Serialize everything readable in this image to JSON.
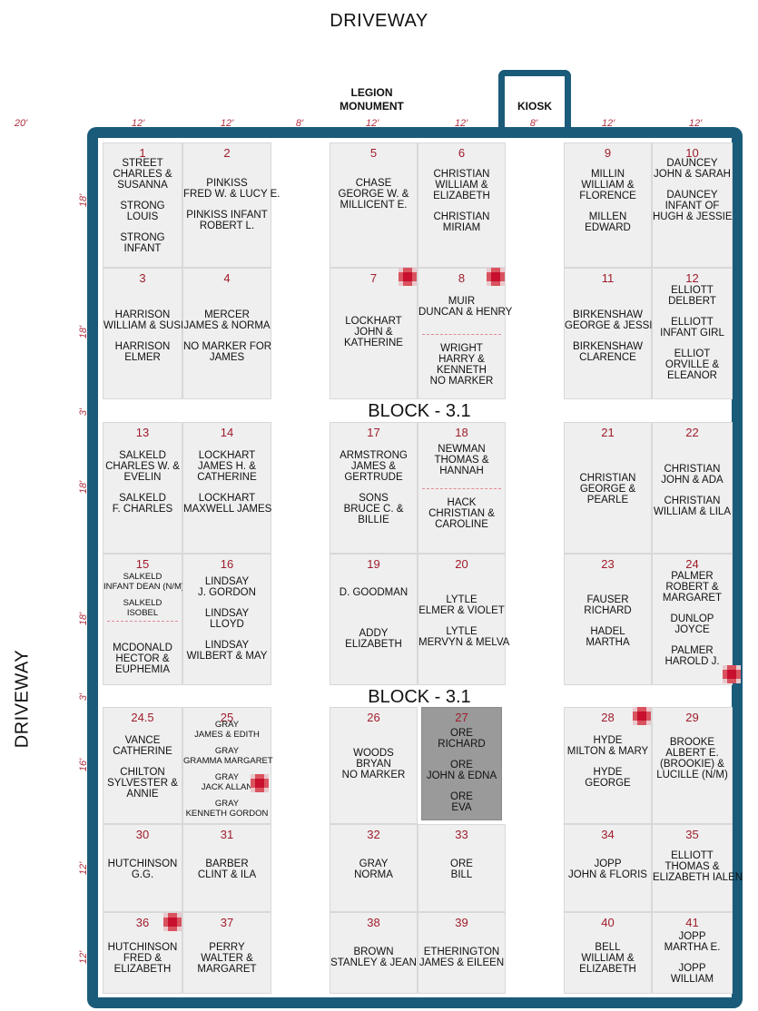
{
  "labels": {
    "driveway_top": "DRIVEWAY",
    "driveway_left": "DRIVEWAY",
    "legion_monument": [
      "LEGION",
      "MONUMENT"
    ],
    "kiosk": "KIOSK",
    "block_a": "BLOCK - 3.1",
    "block_b": "BLOCK - 3.1"
  },
  "top_dims": [
    "20'",
    "12'",
    "12'",
    "8'",
    "12'",
    "12'",
    "8'",
    "12'",
    "12'"
  ],
  "side_dims": [
    "18'",
    "18'",
    "3'",
    "18'",
    "18'",
    "3'",
    "16'",
    "12'",
    "12'"
  ],
  "plots": [
    {
      "num": "1",
      "names": [
        "STREET",
        "CHARLES &",
        "SUSANNA",
        "",
        "STRONG",
        "LOUIS",
        "",
        "STRONG",
        "INFANT"
      ]
    },
    {
      "num": "2",
      "names": [
        "PINKISS",
        "FRED W. & LUCY E.",
        "",
        "PINKISS INFANT",
        "ROBERT L."
      ]
    },
    {
      "num": "5",
      "names": [
        "CHASE",
        "GEORGE W. &",
        "MILLICENT E."
      ]
    },
    {
      "num": "6",
      "names": [
        "CHRISTIAN",
        "WILLIAM &",
        "ELIZABETH",
        "",
        "CHRISTIAN",
        "MIRIAM"
      ]
    },
    {
      "num": "9",
      "names": [
        "MILLIN",
        "WILLIAM &",
        "FLORENCE",
        "",
        "MILLEN",
        "EDWARD"
      ]
    },
    {
      "num": "10",
      "names": [
        "DAUNCEY",
        "JOHN & SARAH",
        "",
        "DAUNCEY",
        "INFANT OF",
        "HUGH & JESSIE"
      ]
    },
    {
      "num": "3",
      "names": [
        "HARRISON",
        "WILLIAM & SUSIE",
        "",
        "HARRISON",
        "ELMER"
      ]
    },
    {
      "num": "4",
      "names": [
        "MERCER",
        "JAMES & NORMA",
        "",
        "NO MARKER FOR",
        "JAMES"
      ]
    },
    {
      "num": "7",
      "names": [
        "LOCKHART",
        "JOHN &",
        "KATHERINE"
      ]
    },
    {
      "num": "8",
      "names": [
        "MUIR",
        "DUNCAN & HENRY"
      ],
      "names2": [
        "WRIGHT",
        "HARRY &",
        "KENNETH",
        "NO MARKER"
      ]
    },
    {
      "num": "11",
      "names": [
        "BIRKENSHAW",
        "GEORGE & JESSIE",
        "",
        "BIRKENSHAW",
        "CLARENCE"
      ]
    },
    {
      "num": "12",
      "names": [
        "ELLIOTT",
        "DELBERT",
        "",
        "ELLIOTT",
        "INFANT GIRL",
        "",
        "ELLIOT",
        "ORVILLE &",
        "ELEANOR"
      ]
    },
    {
      "num": "13",
      "names": [
        "SALKELD",
        "CHARLES W. &",
        "EVELIN",
        "",
        "SALKELD",
        "F. CHARLES"
      ]
    },
    {
      "num": "14",
      "names": [
        "LOCKHART",
        "JAMES H. &",
        "CATHERINE",
        "",
        "LOCKHART",
        "MAXWELL JAMES"
      ]
    },
    {
      "num": "17",
      "names": [
        "ARMSTRONG",
        "JAMES &",
        "GERTRUDE",
        "",
        "SONS",
        "BRUCE C. &",
        "BILLIE"
      ]
    },
    {
      "num": "18",
      "names": [
        "NEWMAN",
        "THOMAS &",
        "HANNAH"
      ],
      "names2": [
        "HACK",
        "CHRISTIAN &",
        "CAROLINE"
      ]
    },
    {
      "num": "21",
      "names": [
        "CHRISTIAN",
        "GEORGE &",
        "PEARLE"
      ]
    },
    {
      "num": "22",
      "names": [
        "CHRISTIAN",
        "JOHN & ADA",
        "",
        "CHRISTIAN",
        "WILLIAM & LILA"
      ]
    },
    {
      "num": "15",
      "names": [
        "SALKELD",
        "INFANT DEAN (N/M)",
        "",
        "SALKELD",
        "ISOBEL"
      ],
      "names2": [
        "McDONALD",
        "HECTOR &",
        "EUPHEMIA"
      ]
    },
    {
      "num": "16",
      "names": [
        "LINDSAY",
        "J. GORDON",
        "",
        "LINDSAY",
        "LLOYD",
        "",
        "LINDSAY",
        "WILBERT & MAY"
      ]
    },
    {
      "num": "19",
      "names": [
        "D. GOODMAN",
        "",
        "",
        "",
        "ADDY",
        "ELIZABETH"
      ]
    },
    {
      "num": "20",
      "names": [
        "LYTLE",
        "ELMER & VIOLET",
        "",
        "LYTLE",
        "MERVYN & MELVA"
      ]
    },
    {
      "num": "23",
      "names": [
        "FAUSER",
        "RICHARD",
        "",
        "HADEL",
        "MARTHA"
      ]
    },
    {
      "num": "24",
      "names": [
        "PALMER",
        "ROBERT &",
        "MARGARET",
        "",
        "DUNLOP",
        "JOYCE",
        "",
        "PALMER",
        "HAROLD J."
      ]
    },
    {
      "num": "24.5",
      "names": [
        "VANCE",
        "CATHERINE",
        "",
        "CHILTON",
        "SYLVESTER &",
        "ANNIE"
      ]
    },
    {
      "num": "25",
      "names": [
        "GRAY",
        "JAMES & EDITH",
        "",
        "GRAY",
        "GRAMMA MARGARET",
        "",
        "GRAY",
        "JACK ALLAN",
        "",
        "GRAY",
        "KENNETH GORDON"
      ]
    },
    {
      "num": "26",
      "names": [
        "WOODS",
        "BRYAN",
        "NO MARKER"
      ]
    },
    {
      "num": "27",
      "names": [
        "ORE",
        "RICHARD",
        "",
        "ORE",
        "JOHN & EDNA",
        "",
        "ORE",
        "EVA"
      ]
    },
    {
      "num": "28",
      "names": [
        "HYDE",
        "MILTON & MARY",
        "",
        "HYDE",
        "GEORGE"
      ]
    },
    {
      "num": "29",
      "names": [
        "BROOKE",
        "ALBERT E.",
        "(BROOKIE) &",
        "LUCILLE (N/M)"
      ]
    },
    {
      "num": "30",
      "names": [
        "HUTCHINSON",
        "G.G."
      ]
    },
    {
      "num": "31",
      "names": [
        "BARBER",
        "CLINT & ILA"
      ]
    },
    {
      "num": "32",
      "names": [
        "GRAY",
        "NORMA"
      ]
    },
    {
      "num": "33",
      "names": [
        "ORE",
        "BILL"
      ]
    },
    {
      "num": "34",
      "names": [
        "JOPP",
        "JOHN & FLORIS"
      ]
    },
    {
      "num": "35",
      "names": [
        "ELLIOTT",
        "THOMAS &",
        "ELIZABETH IALEN"
      ]
    },
    {
      "num": "36",
      "names": [
        "HUTCHINSON",
        "FRED &",
        "ELIZABETH"
      ]
    },
    {
      "num": "37",
      "names": [
        "PERRY",
        "WALTER &",
        "MARGARET"
      ]
    },
    {
      "num": "38",
      "names": [
        "BROWN",
        "STANLEY & JEAN"
      ]
    },
    {
      "num": "39",
      "names": [
        "ETHERINGTON",
        "JAMES & EILEEN"
      ]
    },
    {
      "num": "40",
      "names": [
        "BELL",
        "WILLIAM &",
        "ELIZABETH"
      ]
    },
    {
      "num": "41",
      "names": [
        "JOPP",
        "MARTHA E.",
        "",
        "JOPP",
        "WILLIAM"
      ]
    }
  ],
  "marker_color": "#c8102e",
  "frame_color": "#1b5b7a",
  "number_color": "#a01c2c",
  "dim_color": "#b03040"
}
